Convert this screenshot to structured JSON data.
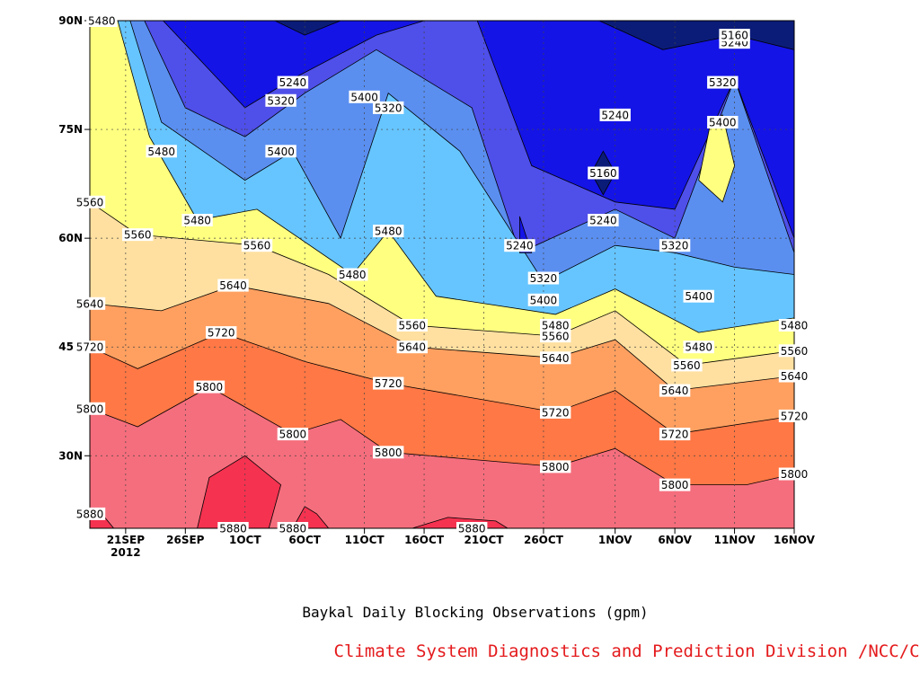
{
  "chart_data": {
    "type": "heatmap",
    "title": "Baykal Daily Blocking Observations (gpm)",
    "credit": "Climate System Diagnostics and Prediction Division /NCC/CMA",
    "credit_color": "#e41a1c",
    "x_ticks": [
      {
        "date": "2012-09-21",
        "label": "21SEP",
        "sublabel": "2012"
      },
      {
        "date": "2012-09-26",
        "label": "26SEP"
      },
      {
        "date": "2012-10-01",
        "label": "1OCT"
      },
      {
        "date": "2012-10-06",
        "label": "6OCT"
      },
      {
        "date": "2012-10-11",
        "label": "11OCT"
      },
      {
        "date": "2012-10-16",
        "label": "16OCT"
      },
      {
        "date": "2012-10-21",
        "label": "21OCT"
      },
      {
        "date": "2012-10-26",
        "label": "26OCT"
      },
      {
        "date": "2012-11-01",
        "label": "1NOV"
      },
      {
        "date": "2012-11-06",
        "label": "6NOV"
      },
      {
        "date": "2012-11-11",
        "label": "11NOV"
      },
      {
        "date": "2012-11-16",
        "label": "16NOV"
      }
    ],
    "xlim": [
      "2012-09-18",
      "2012-11-16"
    ],
    "y_ticks": [
      {
        "value": 30,
        "label": "30N"
      },
      {
        "value": 45,
        "label": "45N"
      },
      {
        "value": 60,
        "label": "60N"
      },
      {
        "value": 75,
        "label": "75N"
      },
      {
        "value": 90,
        "label": "90N"
      }
    ],
    "ylim": [
      20,
      90
    ],
    "grid": true,
    "levels": [
      5160,
      5240,
      5320,
      5400,
      5480,
      5560,
      5640,
      5720,
      5800,
      5880
    ],
    "band_colors": [
      "#0b1c78",
      "#1414e6",
      "#4f4fea",
      "#5a8ff0",
      "#66c5ff",
      "#ffff80",
      "#ffe0a0",
      "#ffa060",
      "#ff7845",
      "#f56e7d",
      "#f53250"
    ],
    "contours": [
      {
        "level": 5880,
        "date": "2012-09-18",
        "lat": 22
      },
      {
        "level": 5880,
        "date": "2012-09-30",
        "lat": 20
      },
      {
        "level": 5880,
        "date": "2012-10-05",
        "lat": 20
      },
      {
        "level": 5880,
        "date": "2012-10-20",
        "lat": 20
      },
      {
        "level": 5800,
        "date": "2012-09-18",
        "lat": 36.5
      },
      {
        "level": 5800,
        "date": "2012-09-28",
        "lat": 39.5
      },
      {
        "level": 5800,
        "date": "2012-10-05",
        "lat": 33
      },
      {
        "level": 5800,
        "date": "2012-10-13",
        "lat": 30.5
      },
      {
        "level": 5800,
        "date": "2012-10-27",
        "lat": 28.5
      },
      {
        "level": 5800,
        "date": "2012-11-06",
        "lat": 26
      },
      {
        "level": 5800,
        "date": "2012-11-16",
        "lat": 27.5
      },
      {
        "level": 5720,
        "date": "2012-09-18",
        "lat": 45
      },
      {
        "level": 5720,
        "date": "2012-09-29",
        "lat": 47
      },
      {
        "level": 5720,
        "date": "2012-10-13",
        "lat": 40
      },
      {
        "level": 5720,
        "date": "2012-10-27",
        "lat": 36
      },
      {
        "level": 5720,
        "date": "2012-11-06",
        "lat": 33
      },
      {
        "level": 5720,
        "date": "2012-11-16",
        "lat": 35.5
      },
      {
        "level": 5640,
        "date": "2012-09-18",
        "lat": 51
      },
      {
        "level": 5640,
        "date": "2012-09-30",
        "lat": 53.5
      },
      {
        "level": 5640,
        "date": "2012-10-15",
        "lat": 45
      },
      {
        "level": 5640,
        "date": "2012-10-27",
        "lat": 43.5
      },
      {
        "level": 5640,
        "date": "2012-11-06",
        "lat": 39
      },
      {
        "level": 5640,
        "date": "2012-11-16",
        "lat": 41
      },
      {
        "level": 5560,
        "date": "2012-09-18",
        "lat": 65
      },
      {
        "level": 5560,
        "date": "2012-09-22",
        "lat": 60.5
      },
      {
        "level": 5560,
        "date": "2012-10-02",
        "lat": 59
      },
      {
        "level": 5560,
        "date": "2012-10-15",
        "lat": 48
      },
      {
        "level": 5560,
        "date": "2012-10-27",
        "lat": 46.5
      },
      {
        "level": 5560,
        "date": "2012-11-07",
        "lat": 42.5
      },
      {
        "level": 5560,
        "date": "2012-11-16",
        "lat": 44.5
      },
      {
        "level": 5480,
        "date": "2012-09-19",
        "lat": 90
      },
      {
        "level": 5480,
        "date": "2012-09-24",
        "lat": 72
      },
      {
        "level": 5480,
        "date": "2012-09-27",
        "lat": 62.5
      },
      {
        "level": 5480,
        "date": "2012-10-10",
        "lat": 55
      },
      {
        "level": 5480,
        "date": "2012-10-13",
        "lat": 61
      },
      {
        "level": 5480,
        "date": "2012-10-27",
        "lat": 48
      },
      {
        "level": 5480,
        "date": "2012-11-08",
        "lat": 45
      },
      {
        "level": 5480,
        "date": "2012-11-16",
        "lat": 48
      },
      {
        "level": 5400,
        "date": "2012-10-04",
        "lat": 72
      },
      {
        "level": 5400,
        "date": "2012-10-11",
        "lat": 79.5
      },
      {
        "level": 5400,
        "date": "2012-10-26",
        "lat": 51.5
      },
      {
        "level": 5400,
        "date": "2012-11-08",
        "lat": 52
      },
      {
        "level": 5400,
        "date": "2012-11-10",
        "lat": 76
      },
      {
        "level": 5320,
        "date": "2012-10-04",
        "lat": 79
      },
      {
        "level": 5320,
        "date": "2012-10-13",
        "lat": 78
      },
      {
        "level": 5320,
        "date": "2012-10-26",
        "lat": 54.5
      },
      {
        "level": 5320,
        "date": "2012-11-06",
        "lat": 59
      },
      {
        "level": 5320,
        "date": "2012-11-10",
        "lat": 81.5
      },
      {
        "level": 5240,
        "date": "2012-10-05",
        "lat": 81.5
      },
      {
        "level": 5240,
        "date": "2012-10-24",
        "lat": 59
      },
      {
        "level": 5240,
        "date": "2012-10-31",
        "lat": 62.5
      },
      {
        "level": 5240,
        "date": "2012-11-01",
        "lat": 77
      },
      {
        "level": 5240,
        "date": "2012-11-11",
        "lat": 87
      },
      {
        "level": 5160,
        "date": "2012-10-31",
        "lat": 69
      },
      {
        "level": 5160,
        "date": "2012-11-11",
        "lat": 88
      }
    ]
  }
}
